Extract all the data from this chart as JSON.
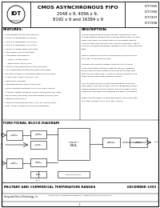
{
  "title_main": "CMOS ASYNCHRONOUS FIFO",
  "title_sub1": "2048 x 9, 4096 x 9,",
  "title_sub2": "8192 x 9 and 16384 x 9",
  "part_numbers": [
    "IDT7205",
    "IDT7206",
    "IDT7207",
    "IDT7208"
  ],
  "features_title": "FEATURES:",
  "features": [
    "First-In/First-Out Dual-Port memory",
    "2048 x 9 organization (IDT7205)",
    "4096 x 9 organization (IDT7206)",
    "8192 x 9 organization (IDT7207)",
    "16384 x 9 organization (IDT7208)",
    "High-speed: 15ns access time",
    "Low power consumption:",
    "  Active: 770mW (max.)",
    "  Power down: 5mW (max.)",
    "Asynchronous simultaneous read and write",
    "Fully expandable in both word depth and width",
    "Pin and functionally compatible with IDT7200 family",
    "Status Flags: Empty, Half-Full, Full",
    "Retransmit capability",
    "High-performance CMOS technology",
    "Military product compliant to MIL-STD-883, Class B",
    "Standard Military Drawing number 5962-86552 (IDT7205),",
    "5962-86557 (IDT7206), and 5962-86558 (IDT7207) are",
    "listed for this function",
    "Industrial temperature range (-40C to +85C) is avail-",
    "able, listed in military electrical specifications"
  ],
  "desc_title": "DESCRIPTION:",
  "desc_lines": [
    "The IDT7205/7206/7207/7208 are dual port memory buff-",
    "ers with internal pointers that load and empty data on a first-",
    "in/first-out basis. The device uses Full and Empty flags to",
    "prevent data overflow and underflow and expansion logic to",
    "allow for unlimited expansion capability in both word and word",
    "width.",
    " ",
    "Data is loaded in and out of the device through the use of",
    "the 9-bit +5V bi-CMOS I/O pins.",
    " ",
    "The devices breadth provides control to control parity",
    "across uses which features a Retransmit (RT) capability",
    "that allows the read pointer to be reset to its initial posi-",
    "tion if RT is pulsed LOW. A Half-Full Flag is available in the",
    "single device and width expansion modes.",
    " ",
    "The IDT7205/7206/7207/7208 are fabricated using IDT's",
    "high-speed CMOS technology. They are designed for appli-",
    "cations requiring system to device and bus buffers, cache",
    "memories, buffering, bus buffering and other applications.",
    " ",
    "Military grade product is manufactured in compliance with",
    "the latest revision of MIL-STD-883, Class B."
  ],
  "func_block_title": "FUNCTIONAL BLOCK DIAGRAM",
  "footer_mil": "MILITARY AND COMMERCIAL TEMPERATURE RANGES",
  "footer_date": "DECEMBER 1993",
  "footer_copy": "Integrated Device Technology, Inc.",
  "bg_color": "#ffffff",
  "border_color": "#000000"
}
